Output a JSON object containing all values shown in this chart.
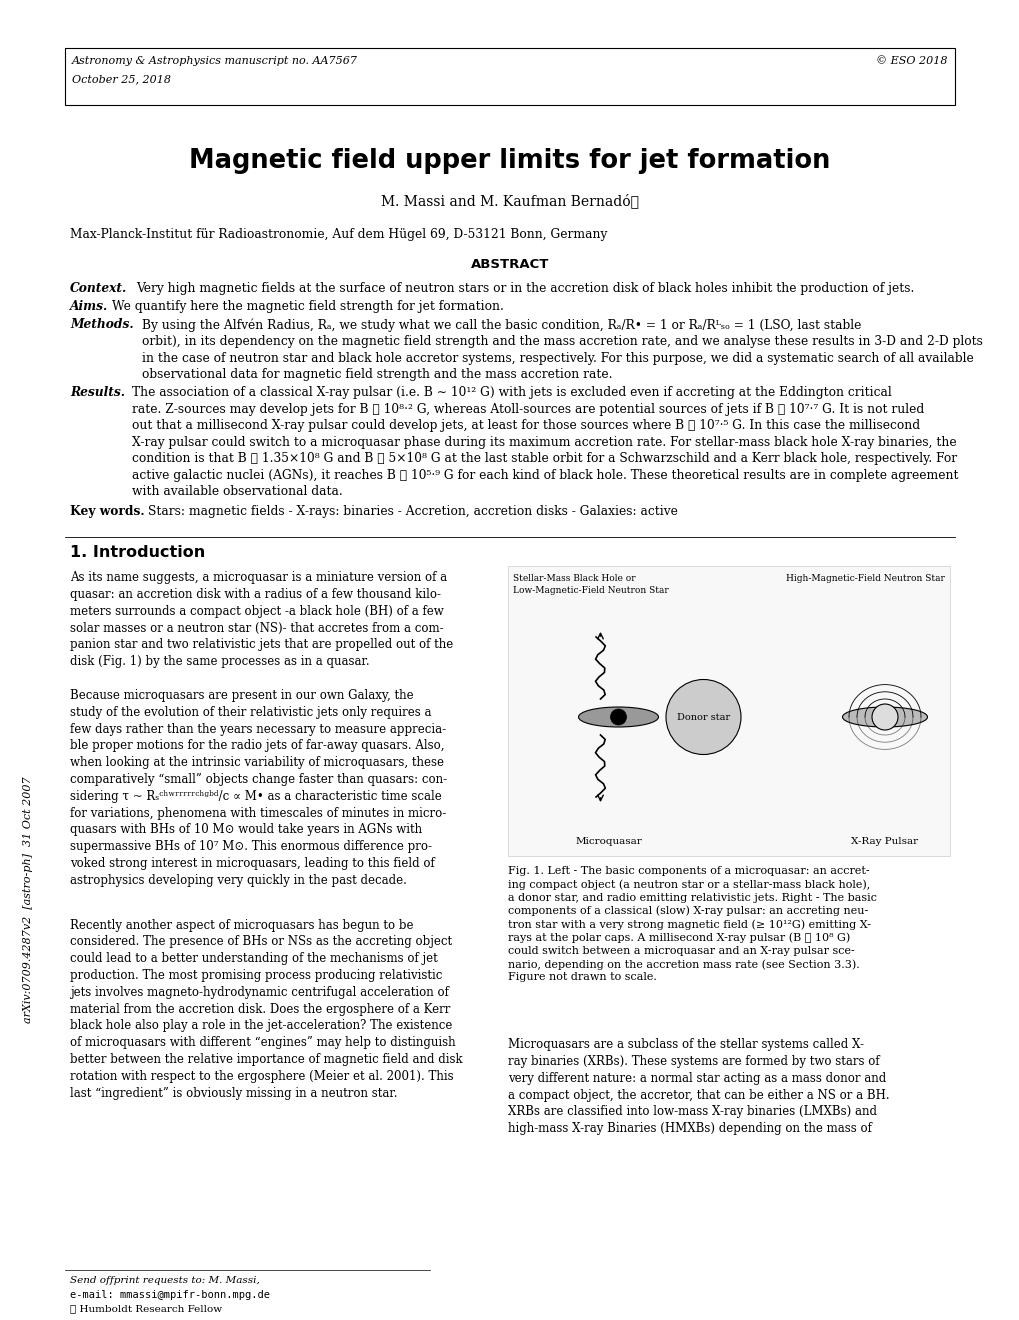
{
  "header_left1": "Astronomy & Astrophysics manuscript no. AA7567",
  "header_left2": "October 25, 2018",
  "header_right": "© ESO 2018",
  "title": "Magnetic field upper limits for jet formation",
  "authors": "M. Massi and M. Kaufman Bernadó⋆",
  "affiliation": "Max-Planck-Institut für Radioastronomie, Auf dem Hügel 69, D-53121 Bonn, Germany",
  "abstract_title": "ABSTRACT",
  "kw_label": "Key words.",
  "kw_text": " Stars: magnetic fields - X-rays: binaries - Accretion, accretion disks - Galaxies: active",
  "sec1_title": "1. Introduction",
  "fig1_label_left1": "Stellar-Mass Black Hole or",
  "fig1_label_left2": "Low-Magnetic-Field Neutron Star",
  "fig1_label_right": "High-Magnetic-Field Neutron Star",
  "fig1_label_microquasar": "Microquasar",
  "fig1_label_xraypulsar": "X-Ray Pulsar",
  "fig1_label_donor": "Donor star",
  "footer_line1": "Send offprint requests to: M. Massi,",
  "footer_line2": "e-mail: mmassi@mpifr-bonn.mpg.de",
  "footer_line3": "⋆ Humboldt Research Fellow",
  "sidebar_text": "arXiv:0709.4287v2  [astro-ph]  31 Oct 2007",
  "bg_color": "#ffffff",
  "text_color": "#000000"
}
